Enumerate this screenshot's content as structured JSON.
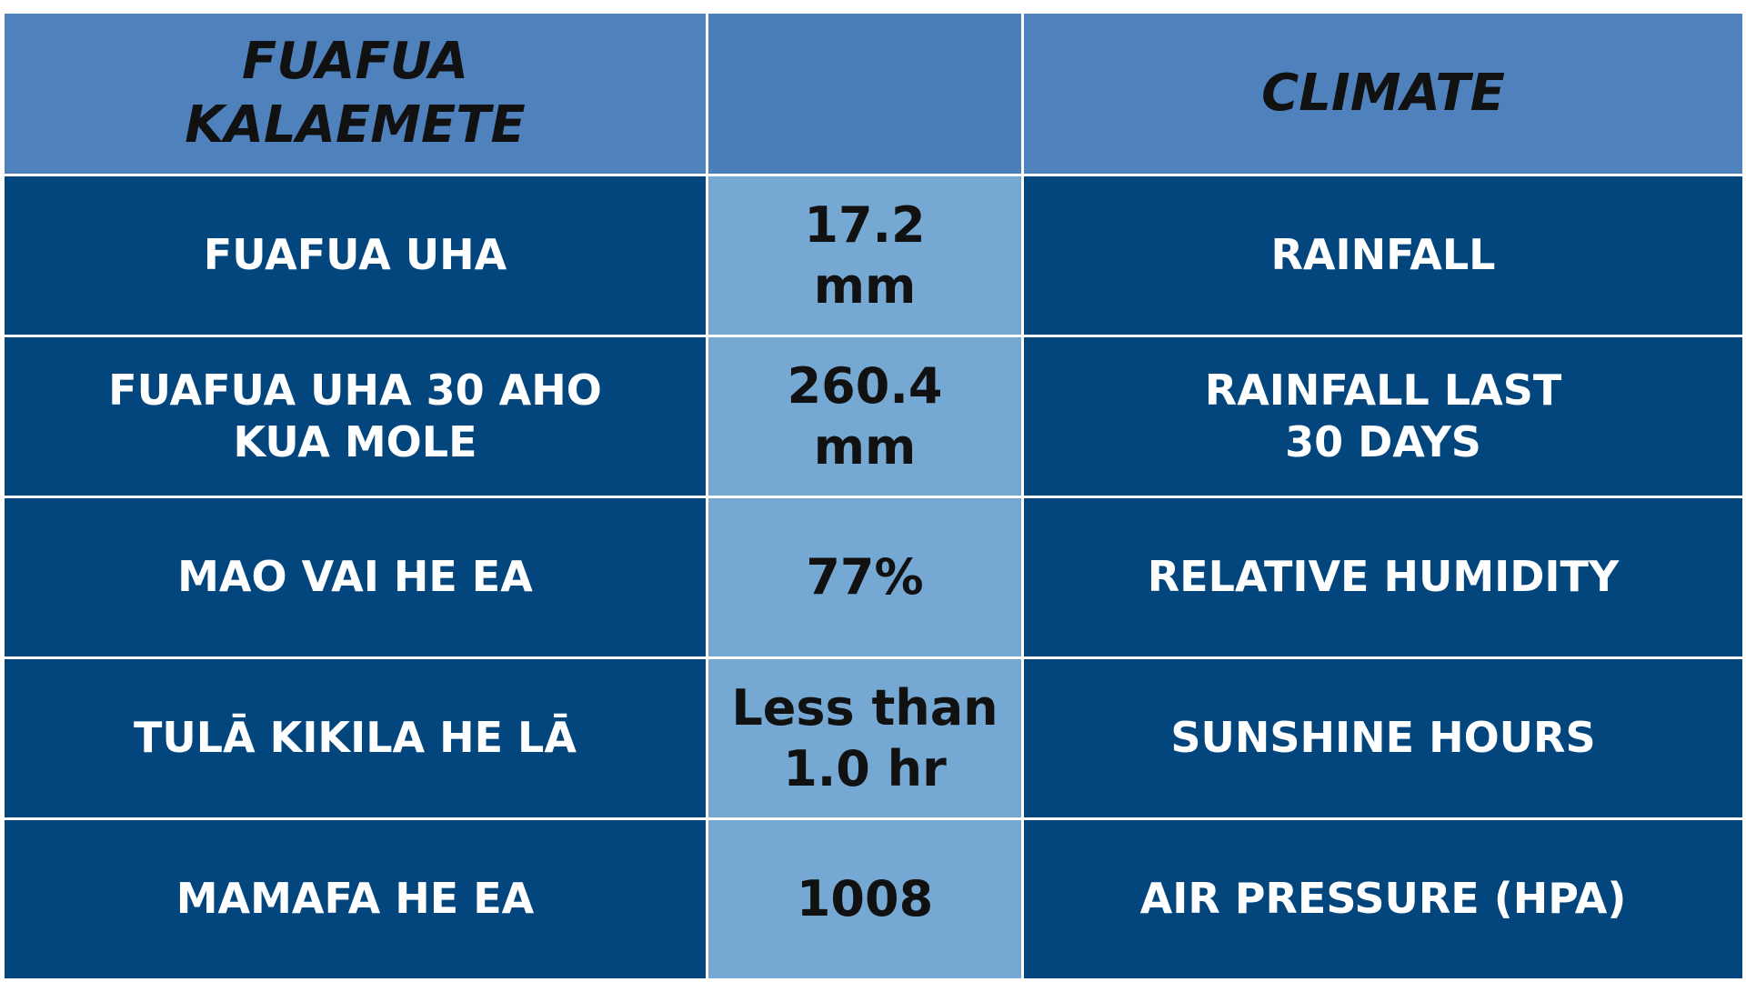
{
  "table": {
    "header": {
      "left": [
        "FUAFUA",
        "KALAEMETE"
      ],
      "right": [
        "CLIMATE"
      ]
    },
    "rows": [
      [
        [
          "FUAFUA UHA"
        ],
        [
          "17.2",
          "mm"
        ],
        [
          "RAINFALL"
        ]
      ],
      [
        [
          "FUAFUA UHA 30 AHO",
          "KUA MOLE"
        ],
        [
          "260.4",
          "mm"
        ],
        [
          "RAINFALL LAST",
          "30 DAYS"
        ]
      ],
      [
        [
          "MAO VAI HE EA"
        ],
        [
          "77%"
        ],
        [
          "RELATIVE HUMIDITY"
        ]
      ],
      [
        [
          "TULĀ KIKILA HE LĀ"
        ],
        [
          "Less than",
          "1.0 hr"
        ],
        [
          "SUNSHINE HOURS"
        ]
      ],
      [
        [
          "MAMAFA HE EA"
        ],
        [
          "1008"
        ],
        [
          "AIR PRESSURE (HPA)"
        ]
      ]
    ]
  }
}
